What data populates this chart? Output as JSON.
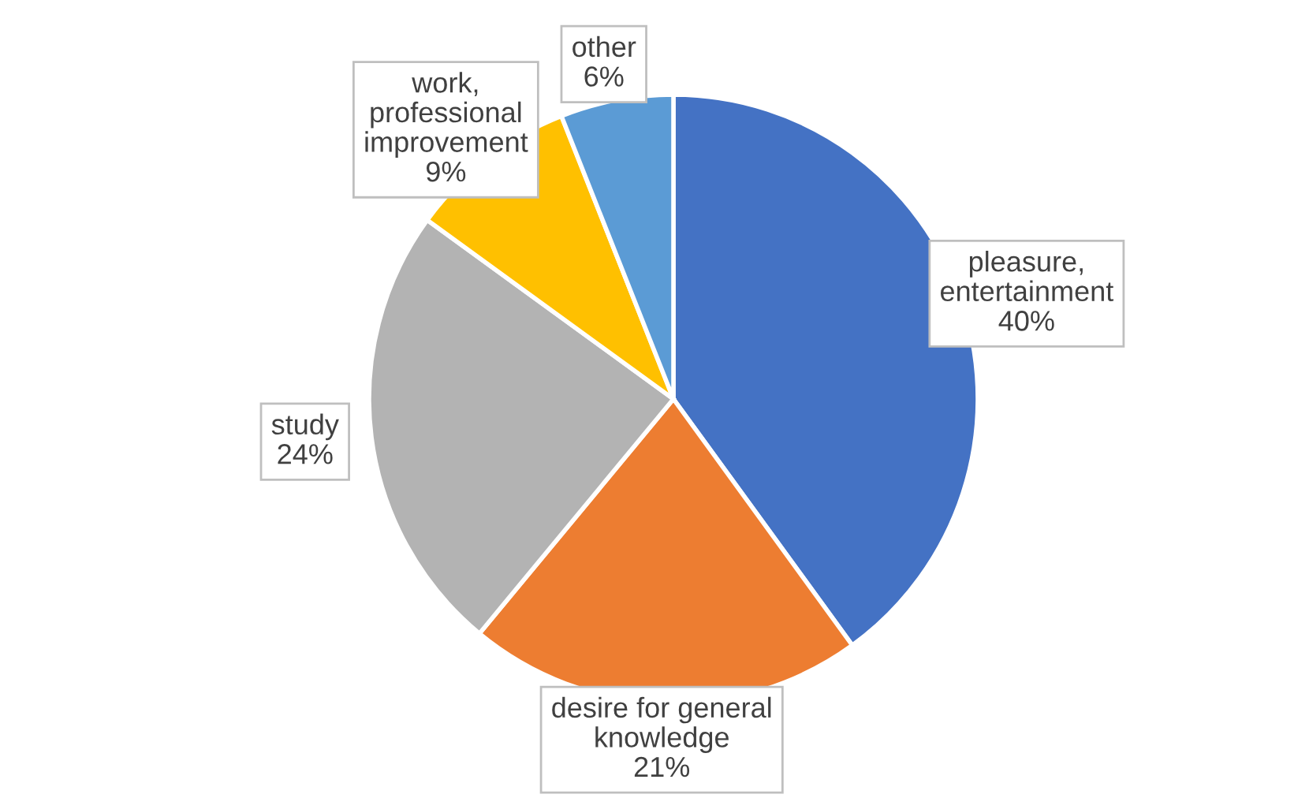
{
  "chart_data": {
    "type": "pie",
    "categories": [
      "pleasure,\nentertainment",
      "desire for general\nknowledge",
      "study",
      "work,\nprofessional\nimprovement",
      "other"
    ],
    "values": [
      40,
      21,
      24,
      9,
      6
    ],
    "colors": [
      "#4472c4",
      "#ed7d31",
      "#b3b3b3",
      "#ffc000",
      "#5b9bd5"
    ],
    "value_labels": [
      "40%",
      "21%",
      "24%",
      "9%",
      "6%"
    ],
    "legend": false
  }
}
